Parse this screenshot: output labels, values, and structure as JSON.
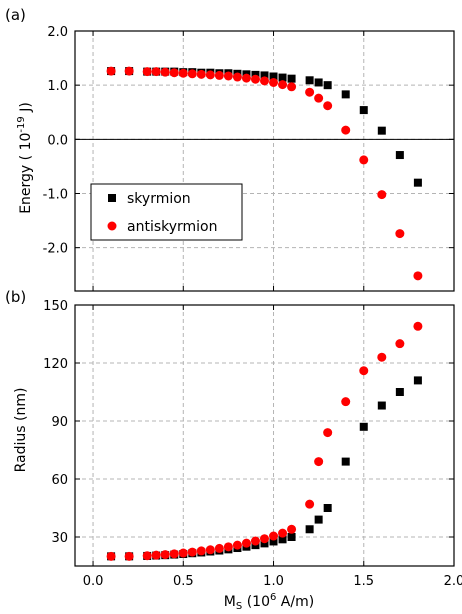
{
  "chart_data": [
    {
      "type": "scatter",
      "panel_label": "(a)",
      "ylabel": "Energy ( 10",
      "ylabel_exp": "-19",
      "ylabel_unit": " J)",
      "xlim": [
        -0.1,
        2.0
      ],
      "ylim": [
        -2.8,
        2.0
      ],
      "xticks": [
        0.0,
        0.5,
        1.0,
        1.5,
        2.0
      ],
      "yticks": [
        2.0,
        1.0,
        0.0,
        -1.0,
        -2.0
      ],
      "ytick_labels": [
        "2.0",
        "1.0",
        "0.0",
        "-1.0",
        "-2.0"
      ],
      "grid": true,
      "zero_line": true,
      "legend": {
        "placement": "lower-left",
        "entries": [
          "skyrmion",
          "antiskyrmion"
        ]
      },
      "series": [
        {
          "name": "skyrmion",
          "marker": "square",
          "color": "#000000",
          "x": [
            0.1,
            0.2,
            0.3,
            0.35,
            0.4,
            0.45,
            0.5,
            0.55,
            0.6,
            0.65,
            0.7,
            0.75,
            0.8,
            0.85,
            0.9,
            0.95,
            1.0,
            1.05,
            1.1,
            1.2,
            1.25,
            1.3,
            1.4,
            1.5,
            1.6,
            1.7,
            1.8
          ],
          "y": [
            1.26,
            1.26,
            1.25,
            1.25,
            1.25,
            1.25,
            1.24,
            1.24,
            1.23,
            1.23,
            1.22,
            1.22,
            1.21,
            1.2,
            1.19,
            1.18,
            1.16,
            1.14,
            1.12,
            1.09,
            1.05,
            1.0,
            0.83,
            0.54,
            0.16,
            -0.29,
            -0.8
          ]
        },
        {
          "name": "antiskyrmion",
          "marker": "circle",
          "color": "#ff0000",
          "x": [
            0.1,
            0.2,
            0.3,
            0.35,
            0.4,
            0.45,
            0.5,
            0.55,
            0.6,
            0.65,
            0.7,
            0.75,
            0.8,
            0.85,
            0.9,
            0.95,
            1.0,
            1.05,
            1.1,
            1.2,
            1.25,
            1.3,
            1.4,
            1.5,
            1.6,
            1.7,
            1.8
          ],
          "y": [
            1.26,
            1.26,
            1.25,
            1.25,
            1.24,
            1.23,
            1.22,
            1.21,
            1.2,
            1.19,
            1.18,
            1.17,
            1.15,
            1.13,
            1.11,
            1.08,
            1.05,
            1.01,
            0.97,
            0.87,
            0.76,
            0.62,
            0.17,
            -0.38,
            -1.02,
            -1.74,
            -2.52
          ]
        }
      ]
    },
    {
      "type": "scatter",
      "panel_label": "(b)",
      "ylabel": "Radius (nm)",
      "xlabel": "M",
      "xlabel_sub": "S",
      "xlabel_rest_a": " (10",
      "xlabel_exp": "6",
      "xlabel_rest_b": " A/m)",
      "xlim": [
        -0.1,
        2.0
      ],
      "ylim": [
        15,
        150
      ],
      "xticks": [
        0.0,
        0.5,
        1.0,
        1.5,
        2.0
      ],
      "xtick_labels": [
        "0.0",
        "0.5",
        "1.0",
        "1.5",
        "2.0"
      ],
      "yticks": [
        150,
        120,
        90,
        60,
        30
      ],
      "ytick_labels": [
        "150",
        "120",
        "90",
        "60",
        "30"
      ],
      "grid": true,
      "series": [
        {
          "name": "skyrmion",
          "marker": "square",
          "color": "#000000",
          "x": [
            0.1,
            0.2,
            0.3,
            0.35,
            0.4,
            0.45,
            0.5,
            0.55,
            0.6,
            0.65,
            0.7,
            0.75,
            0.8,
            0.85,
            0.9,
            0.95,
            1.0,
            1.05,
            1.1,
            1.2,
            1.25,
            1.3,
            1.4,
            1.5,
            1.6,
            1.7,
            1.8
          ],
          "y": [
            20,
            20,
            20.2,
            20.4,
            20.6,
            20.9,
            21.2,
            21.6,
            22,
            22.5,
            23,
            23.6,
            24.3,
            25,
            25.8,
            26.7,
            27.7,
            28.8,
            30,
            34,
            39,
            45,
            69,
            87,
            98,
            105,
            111
          ]
        },
        {
          "name": "antiskyrmion",
          "marker": "circle",
          "color": "#ff0000",
          "x": [
            0.1,
            0.2,
            0.3,
            0.35,
            0.4,
            0.45,
            0.5,
            0.55,
            0.6,
            0.65,
            0.7,
            0.75,
            0.8,
            0.85,
            0.9,
            0.95,
            1.0,
            1.05,
            1.1,
            1.2,
            1.25,
            1.3,
            1.4,
            1.5,
            1.6,
            1.7,
            1.8
          ],
          "y": [
            20,
            20,
            20.3,
            20.6,
            20.9,
            21.3,
            21.7,
            22.2,
            22.8,
            23.4,
            24.1,
            24.9,
            25.8,
            26.8,
            27.9,
            29.1,
            30.5,
            32,
            34,
            47,
            69,
            84,
            100,
            116,
            123,
            130,
            139
          ]
        }
      ]
    }
  ]
}
